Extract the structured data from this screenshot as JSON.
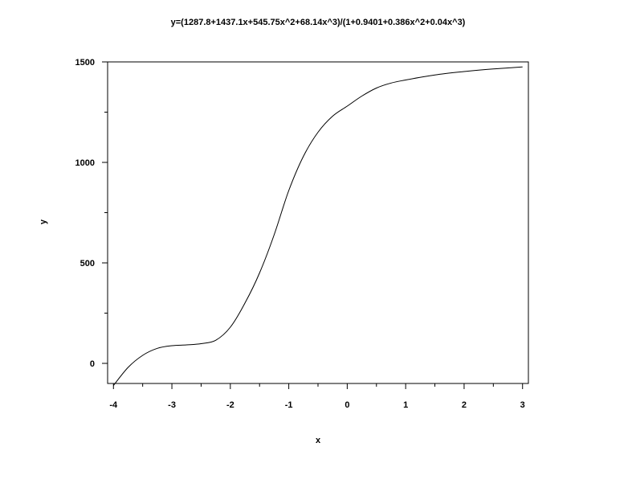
{
  "chart_data": {
    "type": "line",
    "title": "y=(1287.8+1437.1x+545.75x^2+68.14x^3)/(1+0.9401+0.386x^2+0.04x^3)",
    "xlabel": "x",
    "ylabel": "y",
    "xlim": [
      -4.1,
      3.1
    ],
    "ylim": [
      -100,
      1500
    ],
    "x_ticks": [
      -4,
      -3,
      -2,
      -1,
      0,
      1,
      2,
      3
    ],
    "x_tick_labels": [
      "-4",
      "-3",
      "-2",
      "-1",
      "0",
      "1",
      "2",
      "3"
    ],
    "y_ticks": [
      0,
      500,
      1000,
      1500
    ],
    "y_tick_labels": [
      "0",
      "500",
      "1000",
      "1500"
    ],
    "grid": false,
    "series": [
      {
        "x": [
          -4.0,
          -3.75,
          -3.5,
          -3.25,
          -3.0,
          -2.75,
          -2.5,
          -2.25,
          -2.0,
          -1.75,
          -1.5,
          -1.25,
          -1.0,
          -0.75,
          -0.5,
          -0.25,
          0.0,
          0.25,
          0.5,
          0.75,
          1.0,
          1.5,
          2.0,
          2.5,
          3.0
        ],
        "y": [
          -110,
          -20,
          40,
          75,
          88,
          92,
          98,
          115,
          180,
          300,
          450,
          640,
          860,
          1030,
          1150,
          1230,
          1280,
          1330,
          1370,
          1395,
          1410,
          1435,
          1452,
          1465,
          1475
        ]
      }
    ]
  }
}
